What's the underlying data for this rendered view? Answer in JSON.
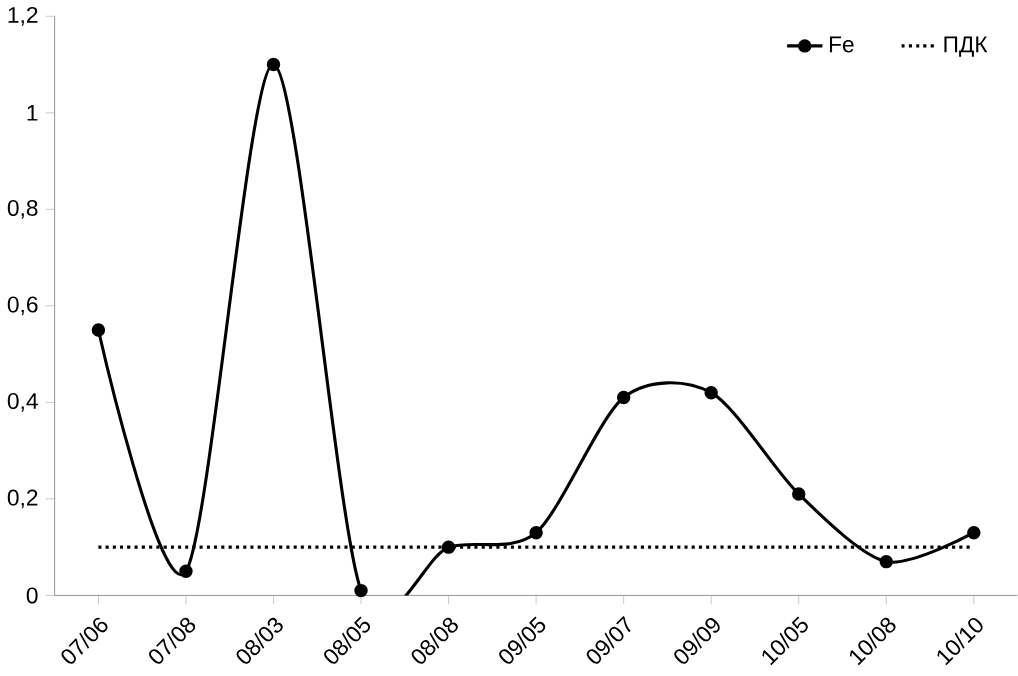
{
  "chart_data": {
    "type": "line",
    "categories": [
      "07/06",
      "07/08",
      "08/03",
      "08/05",
      "08/08",
      "09/05",
      "09/07",
      "09/09",
      "10/05",
      "10/08",
      "10/10"
    ],
    "series": [
      {
        "name": "Fe",
        "color": "#000000",
        "marker": "circle",
        "line_style": "solid",
        "values": [
          0.55,
          0.05,
          1.1,
          0.01,
          0.1,
          0.13,
          0.41,
          0.42,
          0.21,
          0.07,
          0.13
        ]
      },
      {
        "name": "ПДК",
        "color": "#000000",
        "marker": "none",
        "line_style": "dotted",
        "values": [
          0.1,
          0.1,
          0.1,
          0.1,
          0.1,
          0.1,
          0.1,
          0.1,
          0.1,
          0.1,
          0.1
        ]
      }
    ],
    "ylim": [
      0,
      1.2
    ],
    "yticks": [
      0,
      {
        "value": 0.2,
        "label": "0,2"
      },
      {
        "value": 0.4,
        "label": "0,4"
      },
      {
        "value": 0.6,
        "label": "0,6"
      },
      {
        "value": 0.8,
        "label": "0,8"
      },
      1,
      {
        "value": 1.2,
        "label": "1,2"
      }
    ],
    "grid": false,
    "legend": "top right"
  }
}
